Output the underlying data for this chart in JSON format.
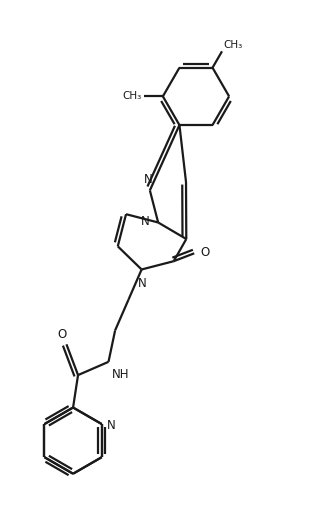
{
  "bg_color": "#ffffff",
  "line_color": "#1a1a1a",
  "line_width": 1.6,
  "figsize": [
    3.1,
    5.1
  ],
  "dpi": 100,
  "xlim": [
    0,
    10
  ],
  "ylim": [
    0,
    17
  ]
}
